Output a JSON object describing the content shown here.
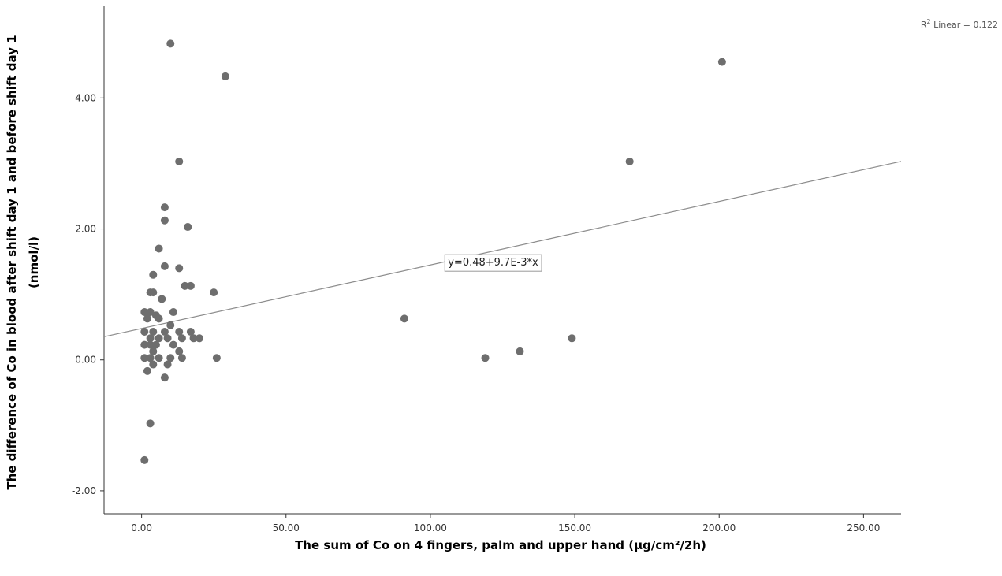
{
  "chart_data": {
    "type": "scatter",
    "title": "",
    "xlabel": "The sum of Co on 4 fingers, palm and upper hand (µg/cm²/2h)",
    "ylabel_line1": "The difference of Co in blood after shift day 1 and before  shift day 1",
    "ylabel_line2": "(nmol/l)",
    "xlim": [
      -13,
      263
    ],
    "ylim": [
      -2.35,
      5.4
    ],
    "x_ticks": [
      0,
      50,
      100,
      150,
      200,
      250
    ],
    "x_tick_labels": [
      "0.00",
      "50.00",
      "100.00",
      "150.00",
      "200.00",
      "250.00"
    ],
    "y_ticks": [
      -2,
      0,
      2,
      4
    ],
    "y_tick_labels": [
      "-2.00",
      "0.00",
      "2.00",
      "4.00"
    ],
    "grid": false,
    "r2_label": "R",
    "r2_sup": "2",
    "r2_value": " Linear = 0.122",
    "fit": {
      "intercept": 0.48,
      "slope": 0.0097,
      "equation_label": "y=0.48+9.7E-3*x",
      "equation_anchor_x": 105
    },
    "point_color": "#6e6e6e",
    "line_color": "#8c8c8c",
    "points": [
      [
        10,
        4.83
      ],
      [
        29,
        4.33
      ],
      [
        201,
        4.55
      ],
      [
        13,
        3.03
      ],
      [
        169,
        3.03
      ],
      [
        8,
        2.33
      ],
      [
        8,
        2.13
      ],
      [
        16,
        2.03
      ],
      [
        6,
        1.7
      ],
      [
        8,
        1.43
      ],
      [
        13,
        1.4
      ],
      [
        4,
        1.3
      ],
      [
        15,
        1.13
      ],
      [
        17,
        1.13
      ],
      [
        3,
        1.03
      ],
      [
        4,
        1.03
      ],
      [
        25,
        1.03
      ],
      [
        7,
        0.93
      ],
      [
        11,
        0.73
      ],
      [
        1,
        0.73
      ],
      [
        3,
        0.73
      ],
      [
        5,
        0.68
      ],
      [
        91,
        0.63
      ],
      [
        2,
        0.63
      ],
      [
        6,
        0.63
      ],
      [
        10,
        0.53
      ],
      [
        1,
        0.43
      ],
      [
        4,
        0.43
      ],
      [
        8,
        0.43
      ],
      [
        13,
        0.43
      ],
      [
        17,
        0.43
      ],
      [
        3,
        0.33
      ],
      [
        6,
        0.33
      ],
      [
        9,
        0.33
      ],
      [
        14,
        0.33
      ],
      [
        18,
        0.33
      ],
      [
        20,
        0.33
      ],
      [
        149,
        0.33
      ],
      [
        1,
        0.23
      ],
      [
        3,
        0.23
      ],
      [
        5,
        0.23
      ],
      [
        11,
        0.23
      ],
      [
        4,
        0.13
      ],
      [
        13,
        0.13
      ],
      [
        131,
        0.13
      ],
      [
        1,
        0.03
      ],
      [
        3,
        0.03
      ],
      [
        6,
        0.03
      ],
      [
        10,
        0.03
      ],
      [
        14,
        0.03
      ],
      [
        26,
        0.03
      ],
      [
        119,
        0.03
      ],
      [
        4,
        -0.07
      ],
      [
        9,
        -0.07
      ],
      [
        2,
        -0.17
      ],
      [
        8,
        -0.27
      ],
      [
        3,
        -0.97
      ],
      [
        1,
        -1.53
      ]
    ]
  }
}
